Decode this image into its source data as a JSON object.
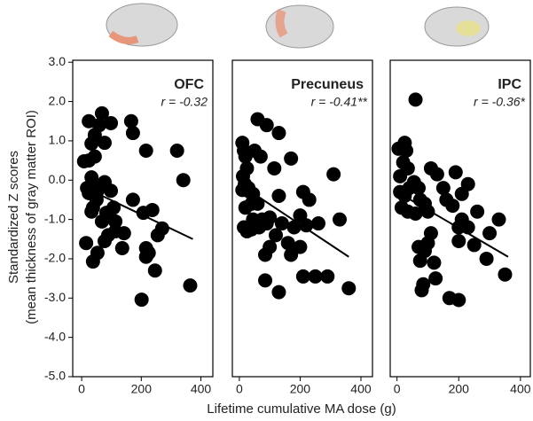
{
  "ylabel": [
    "Standardized Z scores",
    "(mean thickness of gray matter ROI)"
  ],
  "xlabel": "Lifetime cumulative MA dose (g)",
  "chart_data": [
    {
      "type": "scatter",
      "title": "OFC",
      "annotation": "r = -0.32",
      "color": "#000000",
      "x": [
        15,
        8,
        24,
        24,
        33,
        44,
        59,
        68,
        98,
        77,
        44,
        33,
        18,
        24,
        38,
        53,
        33,
        38,
        50,
        77,
        98,
        83,
        68,
        107,
        89,
        77,
        113,
        136,
        38,
        53,
        113,
        172,
        172,
        166,
        216,
        207,
        216,
        255,
        270,
        246,
        201,
        225,
        320,
        341,
        364,
        142,
        216,
        237
      ],
      "y": [
        -1.6,
        0.48,
        0.5,
        1.5,
        0.93,
        1.15,
        1.4,
        1.7,
        1.45,
        0.95,
        0.6,
        0.07,
        -0.2,
        -0.33,
        -0.15,
        -0.27,
        -0.8,
        -0.7,
        -0.5,
        -0.05,
        -0.27,
        -0.83,
        -1.05,
        -0.7,
        -1.4,
        -1.55,
        -1.05,
        -1.73,
        -2.07,
        -1.85,
        -1.3,
        -0.5,
        1.2,
        1.5,
        0.75,
        -0.83,
        -1.73,
        -1.4,
        -1.23,
        -2.3,
        -3.04,
        -1.85,
        0.75,
        0.0,
        -2.68,
        -1.35,
        -1.95,
        -0.76
      ],
      "fit": {
        "x": [
          0,
          373
        ],
        "y": [
          -0.15,
          -1.5
        ]
      },
      "xlim": [
        -30,
        440
      ],
      "ylim": [
        -5,
        3.05
      ],
      "xticks": [
        0,
        200,
        400
      ],
      "yticks": [
        {
          "value": 3,
          "label": "3.0"
        },
        {
          "value": 2,
          "label": "2.0"
        },
        {
          "value": 1,
          "label": "1.0"
        },
        {
          "value": 0,
          "label": "0.0"
        },
        {
          "value": -1,
          "label": "-1.0"
        },
        {
          "value": -2,
          "label": "-2.0"
        },
        {
          "value": -3,
          "label": "-3.0"
        },
        {
          "value": -4,
          "label": "-4.0"
        },
        {
          "value": -5,
          "label": "-5.0"
        }
      ]
    },
    {
      "type": "scatter",
      "title": "Precuneus",
      "annotation": "r = -0.41**",
      "color": "#000000",
      "x": [
        10,
        15,
        20,
        25,
        12,
        18,
        10,
        30,
        35,
        20,
        40,
        15,
        25,
        45,
        60,
        90,
        130,
        50,
        70,
        115,
        60,
        75,
        90,
        65,
        55,
        100,
        130,
        170,
        210,
        230,
        200,
        220,
        260,
        180,
        140,
        160,
        85,
        100,
        120,
        200,
        170,
        85,
        130,
        210,
        250,
        290,
        310,
        330,
        360,
        40,
        45
      ],
      "y": [
        0.95,
        0.75,
        0.6,
        0.3,
        0.1,
        -0.1,
        -0.25,
        -0.2,
        -0.3,
        -0.7,
        -0.6,
        -1.2,
        -1.3,
        -1.0,
        1.55,
        1.4,
        1.2,
        0.75,
        0.6,
        0.3,
        -0.6,
        -1.0,
        -1.1,
        -1.2,
        -1.05,
        -0.95,
        -0.4,
        0.55,
        -0.3,
        -0.5,
        -0.9,
        -1.15,
        -1.1,
        -1.2,
        -1.1,
        -1.6,
        -1.9,
        -1.7,
        -1.4,
        -1.7,
        -1.9,
        -2.55,
        -2.85,
        -2.45,
        -2.45,
        -2.45,
        0.15,
        -1.0,
        -2.75,
        -1.25,
        -0.35
      ],
      "fit": {
        "x": [
          0,
          360
        ],
        "y": [
          -0.1,
          -1.95
        ]
      },
      "xlim": [
        -23,
        438
      ],
      "ylim": [
        -5,
        3.05
      ],
      "xticks": [
        0,
        200,
        400
      ]
    },
    {
      "type": "scatter",
      "title": "IPC",
      "annotation": "r = -0.36*",
      "color": "#000000",
      "x": [
        5,
        25,
        30,
        20,
        10,
        35,
        10,
        25,
        40,
        15,
        35,
        60,
        55,
        75,
        70,
        60,
        90,
        100,
        110,
        130,
        150,
        160,
        190,
        180,
        210,
        230,
        210,
        200,
        230,
        260,
        110,
        100,
        90,
        200,
        250,
        300,
        330,
        290,
        350,
        70,
        75,
        85,
        80,
        120,
        125,
        170,
        200
      ],
      "y": [
        0.8,
        0.95,
        0.75,
        0.45,
        0.1,
        0.3,
        -0.3,
        -0.4,
        -0.2,
        -0.7,
        -0.8,
        2.05,
        -0.05,
        -0.5,
        -0.2,
        -0.85,
        -0.6,
        -0.8,
        0.3,
        0.15,
        -0.2,
        -0.5,
        0.2,
        -0.65,
        -0.35,
        -0.1,
        -1.0,
        -1.2,
        -1.2,
        -0.8,
        -1.35,
        -1.6,
        -1.8,
        -1.55,
        -1.65,
        -1.35,
        -1.0,
        -2.0,
        -2.4,
        -1.7,
        -2.05,
        -2.65,
        -2.8,
        -2.1,
        -2.5,
        -3.0,
        -3.05
      ],
      "fit": {
        "x": [
          0,
          360
        ],
        "y": [
          -0.3,
          -1.95
        ]
      },
      "xlim": [
        -22,
        432
      ],
      "ylim": [
        -5,
        3.05
      ],
      "xticks": [
        0,
        200,
        400
      ]
    }
  ]
}
